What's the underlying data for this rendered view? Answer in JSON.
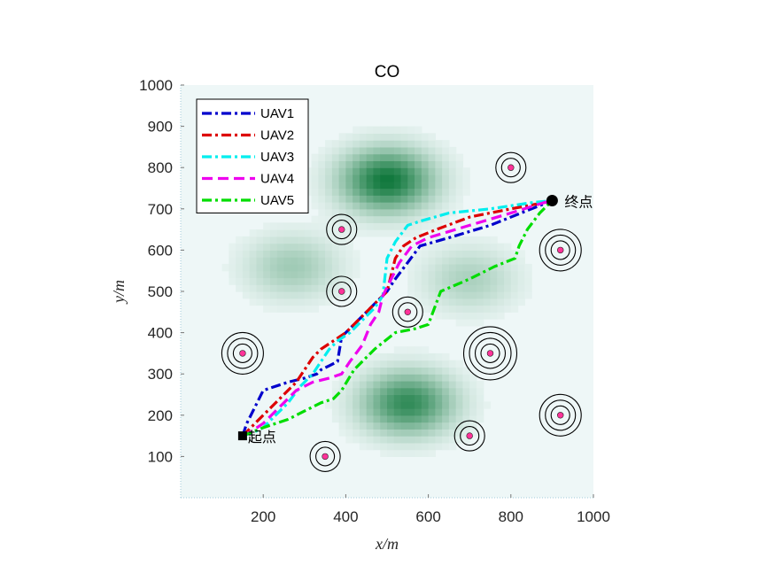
{
  "chart_data": {
    "type": "line",
    "title": "CO",
    "xlabel": "x/m",
    "ylabel": "y/m",
    "xlim": [
      0,
      1000
    ],
    "ylim": [
      0,
      1000
    ],
    "xticks": [
      200,
      400,
      600,
      800,
      1000
    ],
    "yticks": [
      100,
      200,
      300,
      400,
      500,
      600,
      700,
      800,
      900,
      1000
    ],
    "grid": false,
    "legend_position": "top-left",
    "start": {
      "label": "起点",
      "x": 150,
      "y": 150
    },
    "goal": {
      "label": "终点",
      "x": 900,
      "y": 720
    },
    "terrain_peaks": [
      {
        "x": 500,
        "y": 770,
        "strength": 1.0
      },
      {
        "x": 550,
        "y": 230,
        "strength": 0.85
      },
      {
        "x": 270,
        "y": 560,
        "strength": 0.35
      },
      {
        "x": 700,
        "y": 530,
        "strength": 0.3
      }
    ],
    "threats": [
      {
        "x": 800,
        "y": 800,
        "rings": 2
      },
      {
        "x": 390,
        "y": 650,
        "rings": 2
      },
      {
        "x": 920,
        "y": 600,
        "rings": 3
      },
      {
        "x": 390,
        "y": 500,
        "rings": 2
      },
      {
        "x": 550,
        "y": 450,
        "rings": 2
      },
      {
        "x": 150,
        "y": 350,
        "rings": 3
      },
      {
        "x": 750,
        "y": 350,
        "rings": 4
      },
      {
        "x": 920,
        "y": 200,
        "rings": 3
      },
      {
        "x": 700,
        "y": 150,
        "rings": 2
      },
      {
        "x": 350,
        "y": 100,
        "rings": 2
      }
    ],
    "series": [
      {
        "name": "UAV1",
        "color": "#0000cc",
        "dash": "dashdot",
        "x": [
          150,
          160,
          180,
          200,
          260,
          300,
          330,
          340,
          360,
          380,
          390,
          410,
          440,
          470,
          490,
          500,
          520,
          550,
          580,
          650,
          750,
          850,
          900
        ],
        "y": [
          150,
          180,
          220,
          260,
          280,
          290,
          300,
          310,
          320,
          330,
          390,
          410,
          440,
          470,
          490,
          500,
          530,
          570,
          610,
          630,
          660,
          700,
          720
        ]
      },
      {
        "name": "UAV2",
        "color": "#dd0000",
        "dash": "dashdot",
        "x": [
          150,
          170,
          200,
          220,
          250,
          280,
          300,
          320,
          340,
          370,
          400,
          420,
          440,
          460,
          480,
          500,
          510,
          520,
          540,
          570,
          620,
          700,
          800,
          880,
          900
        ],
        "y": [
          150,
          170,
          200,
          220,
          250,
          280,
          310,
          340,
          360,
          380,
          400,
          420,
          440,
          460,
          480,
          500,
          540,
          580,
          610,
          630,
          650,
          680,
          700,
          715,
          720
        ]
      },
      {
        "name": "UAV3",
        "color": "#00eeee",
        "dash": "dashdot",
        "x": [
          150,
          180,
          200,
          230,
          260,
          290,
          320,
          340,
          360,
          380,
          410,
          440,
          470,
          490,
          500,
          520,
          550,
          580,
          650,
          750,
          850,
          900
        ],
        "y": [
          150,
          160,
          170,
          200,
          230,
          270,
          300,
          330,
          360,
          380,
          400,
          430,
          460,
          490,
          580,
          620,
          660,
          670,
          690,
          700,
          715,
          720
        ]
      },
      {
        "name": "UAV4",
        "color": "#ee00ee",
        "dash": "dash",
        "x": [
          150,
          170,
          200,
          240,
          280,
          320,
          360,
          390,
          410,
          440,
          460,
          480,
          490,
          510,
          530,
          560,
          600,
          700,
          800,
          880,
          900
        ],
        "y": [
          150,
          160,
          180,
          220,
          260,
          280,
          290,
          300,
          330,
          370,
          420,
          450,
          490,
          530,
          570,
          610,
          630,
          660,
          690,
          715,
          720
        ]
      },
      {
        "name": "UAV5",
        "color": "#00dd00",
        "dash": "dashdot",
        "x": [
          150,
          200,
          260,
          300,
          340,
          370,
          390,
          420,
          470,
          520,
          570,
          600,
          630,
          700,
          760,
          810,
          820,
          840,
          870,
          900
        ],
        "y": [
          150,
          170,
          190,
          210,
          230,
          240,
          260,
          310,
          360,
          400,
          410,
          420,
          500,
          530,
          560,
          580,
          610,
          650,
          690,
          720
        ]
      }
    ]
  }
}
